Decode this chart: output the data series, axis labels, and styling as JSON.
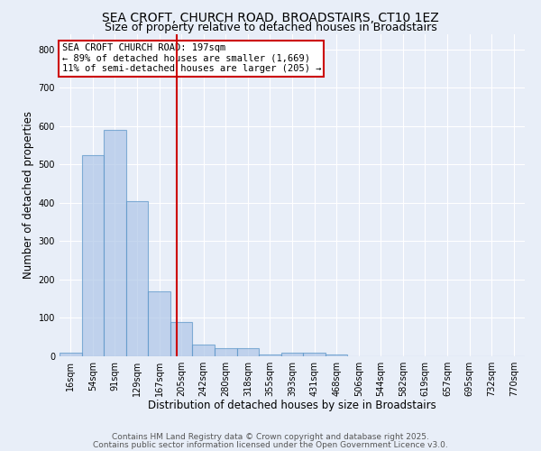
{
  "title": "SEA CROFT, CHURCH ROAD, BROADSTAIRS, CT10 1EZ",
  "subtitle": "Size of property relative to detached houses in Broadstairs",
  "xlabel": "Distribution of detached houses by size in Broadstairs",
  "ylabel": "Number of detached properties",
  "bin_labels": [
    "16sqm",
    "54sqm",
    "91sqm",
    "129sqm",
    "167sqm",
    "205sqm",
    "242sqm",
    "280sqm",
    "318sqm",
    "355sqm",
    "393sqm",
    "431sqm",
    "468sqm",
    "506sqm",
    "544sqm",
    "582sqm",
    "619sqm",
    "657sqm",
    "695sqm",
    "732sqm",
    "770sqm"
  ],
  "bar_heights": [
    10,
    525,
    590,
    405,
    170,
    90,
    30,
    20,
    20,
    5,
    10,
    10,
    5,
    0,
    0,
    0,
    0,
    0,
    0,
    0,
    0
  ],
  "bar_color": "#aec6e8",
  "bar_edge_color": "#5a96c8",
  "bar_alpha": 0.7,
  "vline_color": "#cc0000",
  "annotation_text": "SEA CROFT CHURCH ROAD: 197sqm\n← 89% of detached houses are smaller (1,669)\n11% of semi-detached houses are larger (205) →",
  "annotation_box_color": "white",
  "annotation_box_edge_color": "#cc0000",
  "ylim": [
    0,
    840
  ],
  "yticks": [
    0,
    100,
    200,
    300,
    400,
    500,
    600,
    700,
    800
  ],
  "bg_color": "#e8eef8",
  "plot_bg_color": "#e8eef8",
  "footer_line1": "Contains HM Land Registry data © Crown copyright and database right 2025.",
  "footer_line2": "Contains public sector information licensed under the Open Government Licence v3.0.",
  "title_fontsize": 10,
  "subtitle_fontsize": 9,
  "axis_label_fontsize": 8.5,
  "tick_fontsize": 7,
  "annotation_fontsize": 7.5,
  "footer_fontsize": 6.5
}
